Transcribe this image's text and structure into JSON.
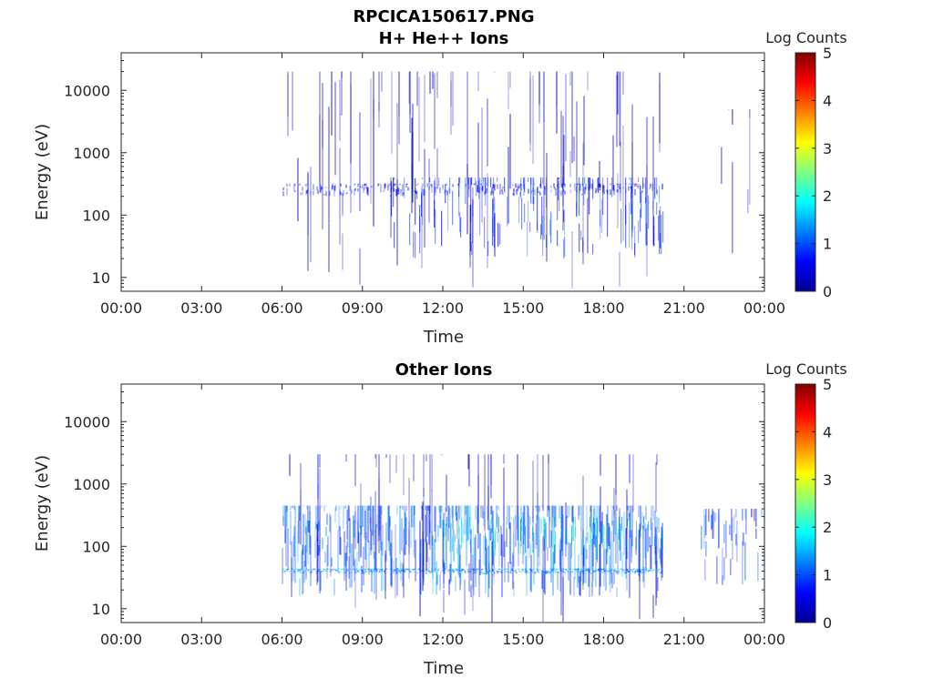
{
  "title_line1": "RPCICA150617.PNG",
  "colorbar_label": "Log Counts",
  "chart_data": [
    {
      "type": "heatmap",
      "title": "H+ He++ Ions",
      "xlabel": "Time",
      "ylabel": "Energy (eV)",
      "x_ticks": [
        "00:00",
        "03:00",
        "06:00",
        "09:00",
        "12:00",
        "15:00",
        "18:00",
        "21:00",
        "00:00"
      ],
      "x_range_hours": [
        0,
        24
      ],
      "y_scale": "log",
      "y_ticks": [
        10,
        100,
        1000,
        10000
      ],
      "y_tick_labels": [
        "10",
        "100",
        "1000",
        "10000"
      ],
      "ylim": [
        6,
        40000
      ],
      "colorbar": {
        "ticks": [
          "0",
          "1",
          "2",
          "3",
          "4",
          "5"
        ],
        "range": [
          0,
          5
        ],
        "colormap": "jet"
      },
      "data_intervals_hours": [
        [
          6.0,
          20.2
        ],
        [
          21.6,
          24.0
        ]
      ],
      "bands": [
        {
          "t_start": 6.0,
          "t_end": 20.2,
          "e_min": 6,
          "e_max": 20000,
          "log_counts": 0.3,
          "density": 0.18
        },
        {
          "t_start": 6.0,
          "t_end": 20.2,
          "e_min": 200,
          "e_max": 320,
          "log_counts": 0.6,
          "density": 0.45
        },
        {
          "t_start": 10.0,
          "t_end": 20.2,
          "e_min": 20,
          "e_max": 400,
          "log_counts": 0.8,
          "density": 0.35
        },
        {
          "t_start": 21.6,
          "t_end": 24.0,
          "e_min": 6,
          "e_max": 5000,
          "log_counts": 0.4,
          "density": 0.1
        }
      ]
    },
    {
      "type": "heatmap",
      "title": "Other Ions",
      "xlabel": "Time",
      "ylabel": "Energy (eV)",
      "x_ticks": [
        "00:00",
        "03:00",
        "06:00",
        "09:00",
        "12:00",
        "15:00",
        "18:00",
        "21:00",
        "00:00"
      ],
      "x_range_hours": [
        0,
        24
      ],
      "y_scale": "log",
      "y_ticks": [
        10,
        100,
        1000,
        10000
      ],
      "y_tick_labels": [
        "10",
        "100",
        "1000",
        "10000"
      ],
      "ylim": [
        6,
        40000
      ],
      "colorbar": {
        "ticks": [
          "0",
          "1",
          "2",
          "3",
          "4",
          "5"
        ],
        "range": [
          0,
          5
        ],
        "colormap": "jet"
      },
      "data_intervals_hours": [
        [
          6.0,
          20.2
        ],
        [
          21.6,
          24.0
        ]
      ],
      "bands": [
        {
          "t_start": 6.0,
          "t_end": 20.2,
          "e_min": 15,
          "e_max": 450,
          "log_counts": 1.1,
          "density": 0.75
        },
        {
          "t_start": 6.0,
          "t_end": 20.2,
          "e_min": 36,
          "e_max": 44,
          "log_counts": 1.3,
          "density": 0.95
        },
        {
          "t_start": 6.0,
          "t_end": 20.2,
          "e_min": 6,
          "e_max": 3000,
          "log_counts": 0.4,
          "density": 0.15
        },
        {
          "t_start": 12.0,
          "t_end": 20.2,
          "e_min": 50,
          "e_max": 300,
          "log_counts": 1.8,
          "density": 0.25
        },
        {
          "t_start": 21.6,
          "t_end": 24.0,
          "e_min": 20,
          "e_max": 400,
          "log_counts": 0.9,
          "density": 0.45
        }
      ]
    }
  ]
}
